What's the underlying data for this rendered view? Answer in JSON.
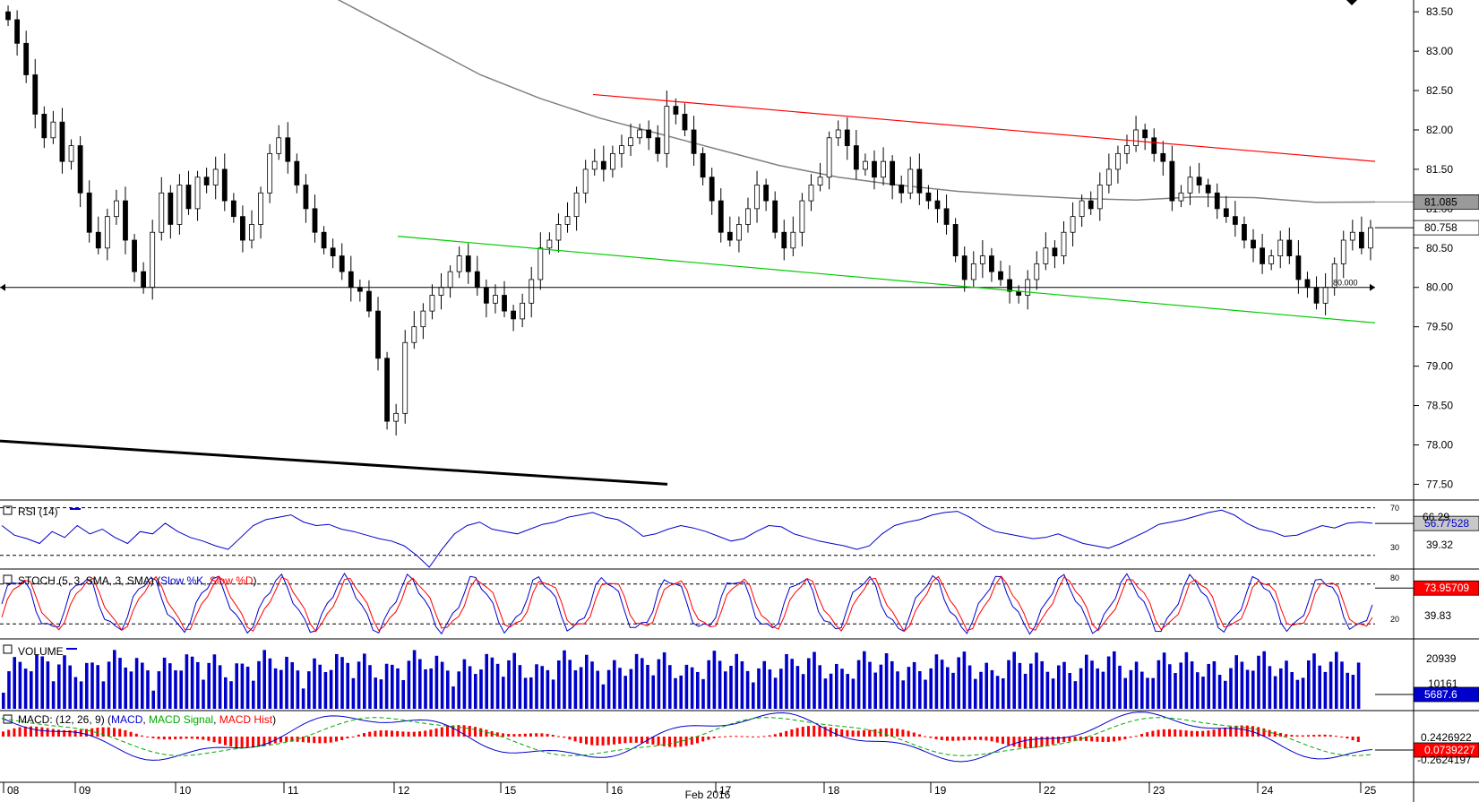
{
  "chart_data": {
    "type": "candlestick",
    "instrument_note": "",
    "x_axis": {
      "day_labels": [
        "08",
        "09",
        "10",
        "11",
        "12",
        "15",
        "16",
        "17",
        "18",
        "19",
        "22",
        "23",
        "24",
        "25"
      ],
      "month_label": "Feb 2016"
    },
    "price_panel": {
      "ylim": [
        77.3,
        83.65
      ],
      "y_ticks": [
        "83.50",
        "83.00",
        "82.50",
        "82.00",
        "81.50",
        "81.00",
        "80.50",
        "80.00",
        "79.50",
        "79.00",
        "78.50",
        "78.00",
        "77.50"
      ],
      "last_price": "80.758",
      "moving_average_value": "81.085",
      "horizontal_level": {
        "value": 80.0,
        "label": "80.000"
      },
      "channel_upper": {
        "color": "#ff0000",
        "from": {
          "day": "16",
          "price": 82.45
        },
        "to": {
          "day": "25",
          "price": 81.6
        }
      },
      "channel_lower": {
        "color": "#00cc00",
        "from": {
          "day": "12",
          "price": 80.65
        },
        "to": {
          "day": "25",
          "price": 79.55
        }
      },
      "support_line": {
        "color": "#000000",
        "from": {
          "day": "08",
          "price": 78.05
        },
        "to": {
          "day": "16",
          "price": 77.5
        }
      },
      "closes": [
        83.4,
        83.1,
        82.7,
        82.2,
        81.9,
        82.1,
        81.6,
        81.8,
        81.2,
        80.7,
        80.5,
        80.9,
        81.1,
        80.6,
        80.2,
        80.0,
        80.7,
        81.2,
        80.8,
        81.3,
        81.0,
        81.4,
        81.3,
        81.5,
        81.1,
        80.9,
        80.6,
        80.8,
        81.2,
        81.7,
        81.9,
        81.6,
        81.3,
        81.0,
        80.7,
        80.5,
        80.4,
        80.2,
        80.0,
        79.95,
        79.7,
        79.1,
        78.3,
        78.4,
        79.3,
        79.5,
        79.7,
        79.9,
        80.0,
        80.2,
        80.4,
        80.2,
        80.0,
        79.8,
        79.9,
        79.7,
        79.6,
        79.8,
        80.1,
        80.5,
        80.6,
        80.8,
        80.9,
        81.2,
        81.5,
        81.6,
        81.5,
        81.7,
        81.8,
        81.9,
        82.0,
        81.9,
        81.7,
        82.3,
        82.2,
        82.0,
        81.7,
        81.4,
        81.1,
        80.7,
        80.6,
        80.8,
        81.0,
        81.3,
        81.1,
        80.7,
        80.5,
        80.7,
        81.1,
        81.3,
        81.4,
        81.9,
        82.0,
        81.8,
        81.5,
        81.6,
        81.4,
        81.6,
        81.3,
        81.2,
        81.5,
        81.2,
        81.1,
        81.0,
        80.8,
        80.4,
        80.1,
        80.3,
        80.4,
        80.2,
        80.1,
        79.95,
        79.9,
        80.1,
        80.3,
        80.5,
        80.4,
        80.7,
        80.9,
        81.1,
        81.0,
        81.3,
        81.5,
        81.7,
        81.8,
        82.0,
        81.9,
        81.7,
        81.6,
        81.1,
        81.2,
        81.4,
        81.3,
        81.2,
        81.0,
        80.9,
        80.8,
        80.6,
        80.5,
        80.3,
        80.4,
        80.6,
        80.4,
        80.1,
        80.0,
        79.8,
        80.0,
        80.3,
        80.6,
        80.7,
        80.5,
        80.758
      ],
      "ma_values": [
        84.2,
        83.9,
        83.5,
        83.1,
        82.7,
        82.4,
        82.15,
        81.95,
        81.75,
        81.55,
        81.4,
        81.3,
        81.22,
        81.17,
        81.13,
        81.11,
        81.15,
        81.14,
        81.08,
        81.085
      ]
    },
    "rsi_panel": {
      "title": "RSI (14)",
      "levels": [
        "70",
        "30"
      ],
      "scale_label": "66.29",
      "current_value": "56.77528",
      "lower_value_label": "39.32",
      "values": [
        55,
        47,
        44,
        40,
        50,
        45,
        55,
        48,
        52,
        45,
        40,
        50,
        48,
        57,
        50,
        45,
        42,
        38,
        35,
        45,
        55,
        60,
        62,
        64,
        58,
        55,
        56,
        52,
        50,
        47,
        44,
        42,
        38,
        30,
        20,
        35,
        48,
        55,
        58,
        52,
        50,
        48,
        52,
        56,
        58,
        62,
        64,
        66,
        62,
        60,
        54,
        46,
        48,
        52,
        55,
        53,
        50,
        46,
        42,
        44,
        50,
        55,
        54,
        48,
        45,
        42,
        40,
        38,
        35,
        38,
        48,
        55,
        58,
        60,
        64,
        66,
        67,
        62,
        55,
        50,
        48,
        46,
        44,
        45,
        48,
        44,
        40,
        38,
        36,
        40,
        45,
        50,
        56,
        58,
        60,
        63,
        66,
        68,
        64,
        57,
        52,
        50,
        46,
        47,
        51,
        55,
        53,
        57,
        58,
        57
      ]
    },
    "stoch_panel": {
      "title": "STOCH (5, 3, SMA, 3, SMA)",
      "series": [
        {
          "name": "Slow %K",
          "color": "#0000cc"
        },
        {
          "name": "Slow %D",
          "color": "#ff0000"
        }
      ],
      "levels": [
        "80",
        "20"
      ],
      "middle_label": "39.83",
      "current_value": "73.95709"
    },
    "volume_panel": {
      "title": "VOLUME",
      "scale_top": "20939",
      "scale_mid": "10161",
      "current_value": "5687.6"
    },
    "macd_panel": {
      "title_prefix": "MACD: (12, 26, 9) (",
      "series": [
        {
          "name": "MACD",
          "color": "#0000cc"
        },
        {
          "name": "MACD Signal",
          "color": "#00aa00"
        },
        {
          "name": "MACD Hist",
          "color": "#ff0000"
        }
      ],
      "title_suffix": ")",
      "label_top": "0.2426922",
      "current_value": "0.0739227",
      "label_bottom": "-0.2624197"
    }
  },
  "colors": {
    "candle_up": "#ffffff",
    "candle_down": "#000000",
    "ma_line": "#808080",
    "rsi_line": "#0000cc",
    "volume_bar": "#0000cc",
    "macd_hist": "#ff0000"
  }
}
